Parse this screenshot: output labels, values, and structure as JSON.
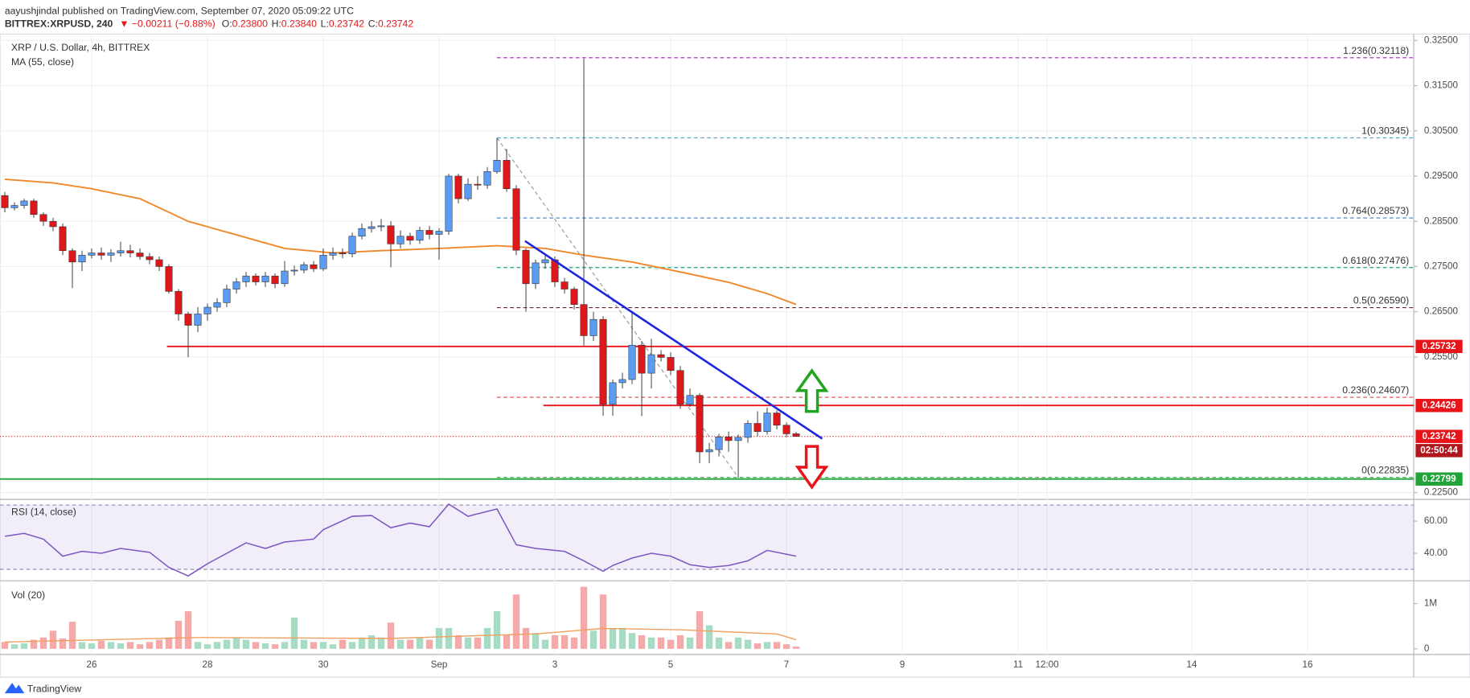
{
  "header": {
    "publisher": "aayushjindal published on TradingView.com, September 07, 2020 05:09:22 UTC",
    "symbol": "BITTREX:XRPUSD, 240",
    "change": "▼ −0.00211 (−0.88%)",
    "ohlc": [
      {
        "label": "O:",
        "value": "0.23800"
      },
      {
        "label": "H:",
        "value": "0.23840"
      },
      {
        "label": "L:",
        "value": "0.23742"
      },
      {
        "label": "C:",
        "value": "0.23742"
      }
    ]
  },
  "footer": {
    "brand": "TradingView"
  },
  "chart_data": [
    {
      "type": "candlestick",
      "title": "XRP / U.S. Dollar, 4h, BITTREX",
      "xlim": [
        -0.5,
        146
      ],
      "xticks": [
        {
          "value": 9,
          "label": "26"
        },
        {
          "value": 21,
          "label": "28"
        },
        {
          "value": 33,
          "label": "30"
        },
        {
          "value": 45,
          "label": "Sep"
        },
        {
          "value": 57,
          "label": "3"
        },
        {
          "value": 69,
          "label": "5"
        },
        {
          "value": 81,
          "label": "7"
        },
        {
          "value": 93,
          "label": "9"
        },
        {
          "value": 105,
          "label": "11"
        },
        {
          "value": 108,
          "label": "12:00"
        },
        {
          "value": 123,
          "label": "14"
        },
        {
          "value": 135,
          "label": "16"
        }
      ],
      "ylim": [
        0.2237,
        0.326
      ],
      "yticks": [
        {
          "value": 0.225,
          "label": "0.22500"
        },
        {
          "value": 0.255,
          "label": "0.25500"
        },
        {
          "value": 0.265,
          "label": "0.26500"
        },
        {
          "value": 0.275,
          "label": "0.27500"
        },
        {
          "value": 0.285,
          "label": "0.28500"
        },
        {
          "value": 0.295,
          "label": "0.29500"
        },
        {
          "value": 0.305,
          "label": "0.30500"
        },
        {
          "value": 0.315,
          "label": "0.31500"
        },
        {
          "value": 0.325,
          "label": "0.32500"
        }
      ],
      "grid": true,
      "candles": {
        "up_color": "#5b9cf6",
        "down_color": "#e0171a",
        "open": [
          0.2907,
          0.288,
          0.2885,
          0.2895,
          0.2865,
          0.285,
          0.2838,
          0.2785,
          0.276,
          0.2775,
          0.278,
          0.2775,
          0.278,
          0.2785,
          0.278,
          0.2772,
          0.2765,
          0.275,
          0.2695,
          0.2645,
          0.262,
          0.2645,
          0.266,
          0.267,
          0.27,
          0.2716,
          0.2729,
          0.2716,
          0.2729,
          0.2712,
          0.274,
          0.2742,
          0.2754,
          0.2745,
          0.2775,
          0.278,
          0.2778,
          0.2817,
          0.2834,
          0.2838,
          0.284,
          0.28,
          0.2817,
          0.2808,
          0.283,
          0.2821,
          0.2828,
          0.295,
          0.29,
          0.2932,
          0.293,
          0.296,
          0.2985,
          0.2922,
          0.2786,
          0.2712,
          0.2758,
          0.2765,
          0.2716,
          0.27,
          0.2666,
          0.2597,
          0.2633,
          0.2445,
          0.2493,
          0.25,
          0.2576,
          0.2514,
          0.2555,
          0.2549,
          0.252,
          0.2445,
          0.2465,
          0.234,
          0.2345,
          0.2373,
          0.2365,
          0.2372,
          0.2403,
          0.2385,
          0.2426,
          0.2399,
          0.238
        ],
        "high": [
          0.2915,
          0.2892,
          0.29,
          0.29,
          0.287,
          0.2858,
          0.2845,
          0.279,
          0.2785,
          0.279,
          0.2792,
          0.2788,
          0.2805,
          0.2798,
          0.279,
          0.278,
          0.2772,
          0.2755,
          0.27,
          0.265,
          0.266,
          0.2668,
          0.268,
          0.271,
          0.2725,
          0.2738,
          0.2735,
          0.2738,
          0.2735,
          0.2762,
          0.2752,
          0.276,
          0.2762,
          0.279,
          0.2792,
          0.279,
          0.2825,
          0.2845,
          0.285,
          0.2855,
          0.285,
          0.283,
          0.2825,
          0.2838,
          0.284,
          0.2835,
          0.2955,
          0.2955,
          0.2945,
          0.295,
          0.297,
          0.3034,
          0.301,
          0.293,
          0.279,
          0.2765,
          0.2775,
          0.2772,
          0.2725,
          0.2705,
          0.321,
          0.265,
          0.264,
          0.25,
          0.2515,
          0.265,
          0.2585,
          0.259,
          0.2565,
          0.256,
          0.253,
          0.248,
          0.247,
          0.236,
          0.238,
          0.2385,
          0.2378,
          0.241,
          0.243,
          0.2438,
          0.2432,
          0.2405,
          0.2384
        ],
        "low": [
          0.287,
          0.2874,
          0.2878,
          0.2858,
          0.284,
          0.2828,
          0.2775,
          0.2702,
          0.274,
          0.2768,
          0.2765,
          0.276,
          0.2772,
          0.277,
          0.2765,
          0.2755,
          0.274,
          0.269,
          0.263,
          0.2549,
          0.2605,
          0.263,
          0.265,
          0.266,
          0.269,
          0.2705,
          0.2708,
          0.2705,
          0.2702,
          0.2705,
          0.273,
          0.2735,
          0.2738,
          0.274,
          0.2765,
          0.2768,
          0.277,
          0.281,
          0.2825,
          0.2828,
          0.2748,
          0.279,
          0.2798,
          0.28,
          0.281,
          0.2765,
          0.282,
          0.289,
          0.2895,
          0.292,
          0.2922,
          0.2955,
          0.2915,
          0.2775,
          0.265,
          0.27,
          0.2745,
          0.2705,
          0.269,
          0.2655,
          0.2575,
          0.2585,
          0.242,
          0.242,
          0.248,
          0.249,
          0.2419,
          0.248,
          0.254,
          0.251,
          0.2435,
          0.244,
          0.2315,
          0.2315,
          0.233,
          0.234,
          0.2283,
          0.236,
          0.2375,
          0.2378,
          0.239,
          0.2372,
          0.23742
        ],
        "close": [
          0.288,
          0.2885,
          0.2895,
          0.2865,
          0.285,
          0.2838,
          0.2785,
          0.276,
          0.2775,
          0.278,
          0.2775,
          0.278,
          0.2785,
          0.278,
          0.2772,
          0.2765,
          0.275,
          0.2695,
          0.2645,
          0.262,
          0.2645,
          0.266,
          0.267,
          0.27,
          0.2716,
          0.2729,
          0.2716,
          0.2729,
          0.2712,
          0.274,
          0.2742,
          0.2754,
          0.2745,
          0.2775,
          0.278,
          0.2778,
          0.2817,
          0.2834,
          0.2838,
          0.284,
          0.28,
          0.2817,
          0.2808,
          0.283,
          0.2821,
          0.2828,
          0.295,
          0.29,
          0.2932,
          0.293,
          0.296,
          0.2985,
          0.2922,
          0.2786,
          0.2712,
          0.2758,
          0.2765,
          0.2716,
          0.27,
          0.2666,
          0.2597,
          0.2633,
          0.2445,
          0.2493,
          0.25,
          0.2576,
          0.2514,
          0.2555,
          0.2549,
          0.252,
          0.2445,
          0.2465,
          0.234,
          0.2345,
          0.2373,
          0.2365,
          0.2372,
          0.2403,
          0.2385,
          0.2426,
          0.2399,
          0.238,
          0.23742
        ]
      },
      "ma": {
        "name": "MA (55, close)",
        "color": "#f0882a",
        "x": [
          0,
          5,
          9,
          14,
          19,
          24,
          29,
          34,
          39,
          45,
          51,
          56,
          60,
          65,
          70,
          75,
          79,
          82
        ],
        "values": [
          0.2943,
          0.2935,
          0.2922,
          0.29,
          0.285,
          0.282,
          0.279,
          0.278,
          0.2785,
          0.279,
          0.2796,
          0.279,
          0.2775,
          0.276,
          0.2738,
          0.2715,
          0.269,
          0.2666
        ]
      },
      "fib": {
        "x0": 51,
        "levels": [
          {
            "label": "1.236(0.32118)",
            "value": 0.32118,
            "color": "#9c27b0"
          },
          {
            "label": "1(0.30345)",
            "value": 0.30345,
            "color": "#4aa3c7"
          },
          {
            "label": "0.764(0.28573)",
            "value": 0.28573,
            "color": "#3f7fbf"
          },
          {
            "label": "0.618(0.27476)",
            "value": 0.27476,
            "color": "#1fa77f"
          },
          {
            "label": "0.5(0.26590)",
            "value": 0.2659,
            "color": "#6b2130"
          },
          {
            "label": "0.236(0.24607)",
            "value": 0.24607,
            "color": "#e0454b"
          },
          {
            "label": "0(0.22835)",
            "value": 0.22835,
            "color": "#38a845"
          }
        ],
        "diagonal": {
          "x": [
            51,
            76
          ],
          "values": [
            0.30345,
            0.22835
          ],
          "color": "#9a9a9a"
        }
      },
      "levels": [
        {
          "value": 0.25732,
          "label": "0.25732",
          "color": "#e8141a",
          "x0": 16.8
        },
        {
          "value": 0.24426,
          "label": "0.24426",
          "color": "#e8141a",
          "x0": 55.8
        },
        {
          "value": 0.22799,
          "label": "0.22799",
          "color": "#22a33a"
        }
      ],
      "trendline": {
        "x": [
          53.9,
          84.7
        ],
        "values": [
          0.28065,
          0.23692
        ],
        "color": "#1c26e0"
      },
      "last_price": {
        "value": 0.23742,
        "label": "0.23742",
        "countdown": "02:50:44",
        "color": "#e8141a"
      }
    },
    {
      "type": "line",
      "title": "RSI (14, close)",
      "color": "#7e57c2",
      "xlim": [
        -0.5,
        146
      ],
      "ylim": [
        24.1,
        72.35
      ],
      "yticks": [
        {
          "value": 40,
          "label": "40.00"
        },
        {
          "value": 60,
          "label": "60.00"
        }
      ],
      "bands": [
        30,
        70
      ],
      "x": [
        0,
        2,
        4,
        6,
        8,
        10,
        12,
        15,
        17,
        19,
        21,
        25,
        27,
        29,
        32,
        33,
        36,
        38,
        40,
        42,
        44,
        46,
        48,
        51,
        53,
        55,
        58,
        60,
        62,
        63,
        65,
        67,
        69,
        71,
        73,
        75,
        77,
        79,
        82
      ],
      "values": [
        50.6,
        52.4,
        48.8,
        38.2,
        41.2,
        40,
        43,
        40.6,
        31.2,
        25.9,
        33.5,
        46.5,
        43,
        47,
        48.8,
        54.7,
        63,
        63.5,
        55.9,
        58.8,
        56.5,
        70.6,
        63,
        67.6,
        45.3,
        43,
        41.2,
        35.3,
        28.8,
        32.4,
        37,
        40,
        38.2,
        32.9,
        31.2,
        32.4,
        35.3,
        41.8,
        38.2
      ]
    },
    {
      "type": "bar",
      "title": "Vol (20)",
      "xlim": [
        -0.5,
        146
      ],
      "ylim": [
        0,
        1400000
      ],
      "yticks": [
        0,
        {
          "value": 1000000,
          "label": "1M"
        }
      ],
      "up_color": "#a6dcc4",
      "down_color": "#f6a9a9",
      "values": [
        150000,
        100000,
        120000,
        200000,
        250000,
        400000,
        230000,
        600000,
        150000,
        120000,
        180000,
        150000,
        120000,
        150000,
        100000,
        150000,
        200000,
        250000,
        620000,
        830000,
        150000,
        100000,
        150000,
        200000,
        250000,
        200000,
        150000,
        120000,
        100000,
        150000,
        690000,
        200000,
        150000,
        150000,
        100000,
        200000,
        150000,
        250000,
        300000,
        250000,
        580000,
        200000,
        200000,
        250000,
        200000,
        460000,
        460000,
        300000,
        250000,
        250000,
        460000,
        830000,
        300000,
        1200000,
        460000,
        350000,
        200000,
        300000,
        300000,
        250000,
        1370000,
        400000,
        1200000,
        460000,
        460000,
        350000,
        300000,
        250000,
        250000,
        200000,
        300000,
        250000,
        830000,
        520000,
        250000,
        150000,
        250000,
        200000,
        120000,
        150000,
        150000,
        100000,
        50000
      ],
      "ma": {
        "color": "#f0a060",
        "x": [
          0,
          20,
          40,
          55,
          62,
          70,
          80,
          82
        ],
        "values": [
          150000,
          250000,
          230000,
          330000,
          450000,
          420000,
          330000,
          200000
        ]
      }
    }
  ]
}
